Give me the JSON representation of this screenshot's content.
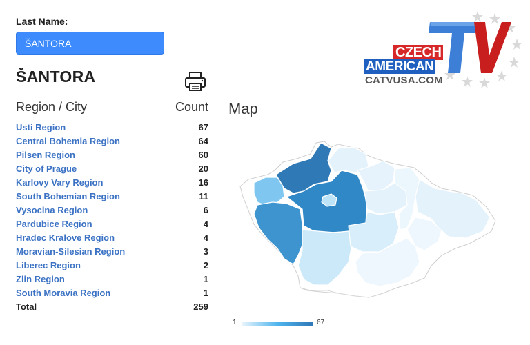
{
  "form": {
    "last_name_label": "Last Name:",
    "last_name_value": "ŠANTORA"
  },
  "result": {
    "surname": "ŠANTORA",
    "print_icon": "printer-icon",
    "col_region": "Region / City",
    "col_count": "Count",
    "rows": [
      {
        "name": "Usti Region",
        "count": "67"
      },
      {
        "name": "Central Bohemia Region",
        "count": "64"
      },
      {
        "name": "Pilsen Region",
        "count": "60"
      },
      {
        "name": "City of Prague",
        "count": "20"
      },
      {
        "name": "Karlovy Vary Region",
        "count": "16"
      },
      {
        "name": "South Bohemian Region",
        "count": "11"
      },
      {
        "name": "Vysocina Region",
        "count": "6"
      },
      {
        "name": "Pardubice Region",
        "count": "4"
      },
      {
        "name": "Hradec Kralove Region",
        "count": "4"
      },
      {
        "name": "Moravian-Silesian Region",
        "count": "3"
      },
      {
        "name": "Liberec Region",
        "count": "2"
      },
      {
        "name": "Zlin Region",
        "count": "1"
      },
      {
        "name": "South Moravia Region",
        "count": "1"
      }
    ],
    "total_label": "Total",
    "total_value": "259"
  },
  "map": {
    "title": "Map",
    "legend_min": "1",
    "legend_max": "67",
    "scale_colors": [
      "#e8f4fc",
      "#4fb5ee",
      "#2f79b7"
    ]
  },
  "logo": {
    "line1": "CZECH",
    "line2": "AMERICAN",
    "big": "TV",
    "site": "CATVUSA.COM",
    "colors": {
      "red": "#d62828",
      "blue": "#1f5fbf",
      "star": "#d8d8d8"
    }
  }
}
